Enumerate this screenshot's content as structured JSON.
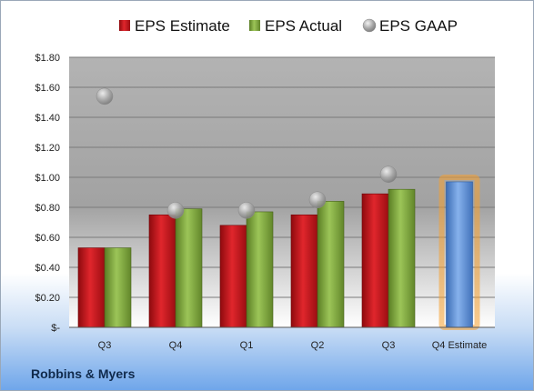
{
  "chart_data": {
    "type": "bar",
    "categories": [
      "Q3",
      "Q4",
      "Q1",
      "Q2",
      "Q3",
      "Q4 Estimate"
    ],
    "series": [
      {
        "name": "EPS Estimate",
        "color": "#c0141a",
        "values": [
          0.53,
          0.75,
          0.68,
          0.75,
          0.89,
          0.97
        ]
      },
      {
        "name": "EPS Actual",
        "color": "#7ea63c",
        "values": [
          0.53,
          0.79,
          0.77,
          0.84,
          0.92,
          null
        ]
      },
      {
        "name": "EPS GAAP",
        "color": "#a8a8a8",
        "marker": "circle",
        "values": [
          1.54,
          0.78,
          0.78,
          0.85,
          1.02,
          null
        ]
      }
    ],
    "highlight": {
      "category_index": 5,
      "color": "#5b8fd6",
      "glow": "#f5a030"
    },
    "ylim": [
      0,
      1.8
    ],
    "yticks": [
      {
        "value": 1.8,
        "label": "$1.80"
      },
      {
        "value": 1.6,
        "label": "$1.60"
      },
      {
        "value": 1.4,
        "label": "$1.40"
      },
      {
        "value": 1.2,
        "label": "$1.20"
      },
      {
        "value": 1.0,
        "label": "$1.00"
      },
      {
        "value": 0.8,
        "label": "$0.80"
      },
      {
        "value": 0.6,
        "label": "$0.60"
      },
      {
        "value": 0.4,
        "label": "$0.40"
      },
      {
        "value": 0.2,
        "label": "$0.20"
      },
      {
        "value": 0,
        "label": "$-"
      }
    ],
    "grid": true,
    "legend": "top-center"
  },
  "footer": {
    "company": "Robbins & Myers"
  }
}
